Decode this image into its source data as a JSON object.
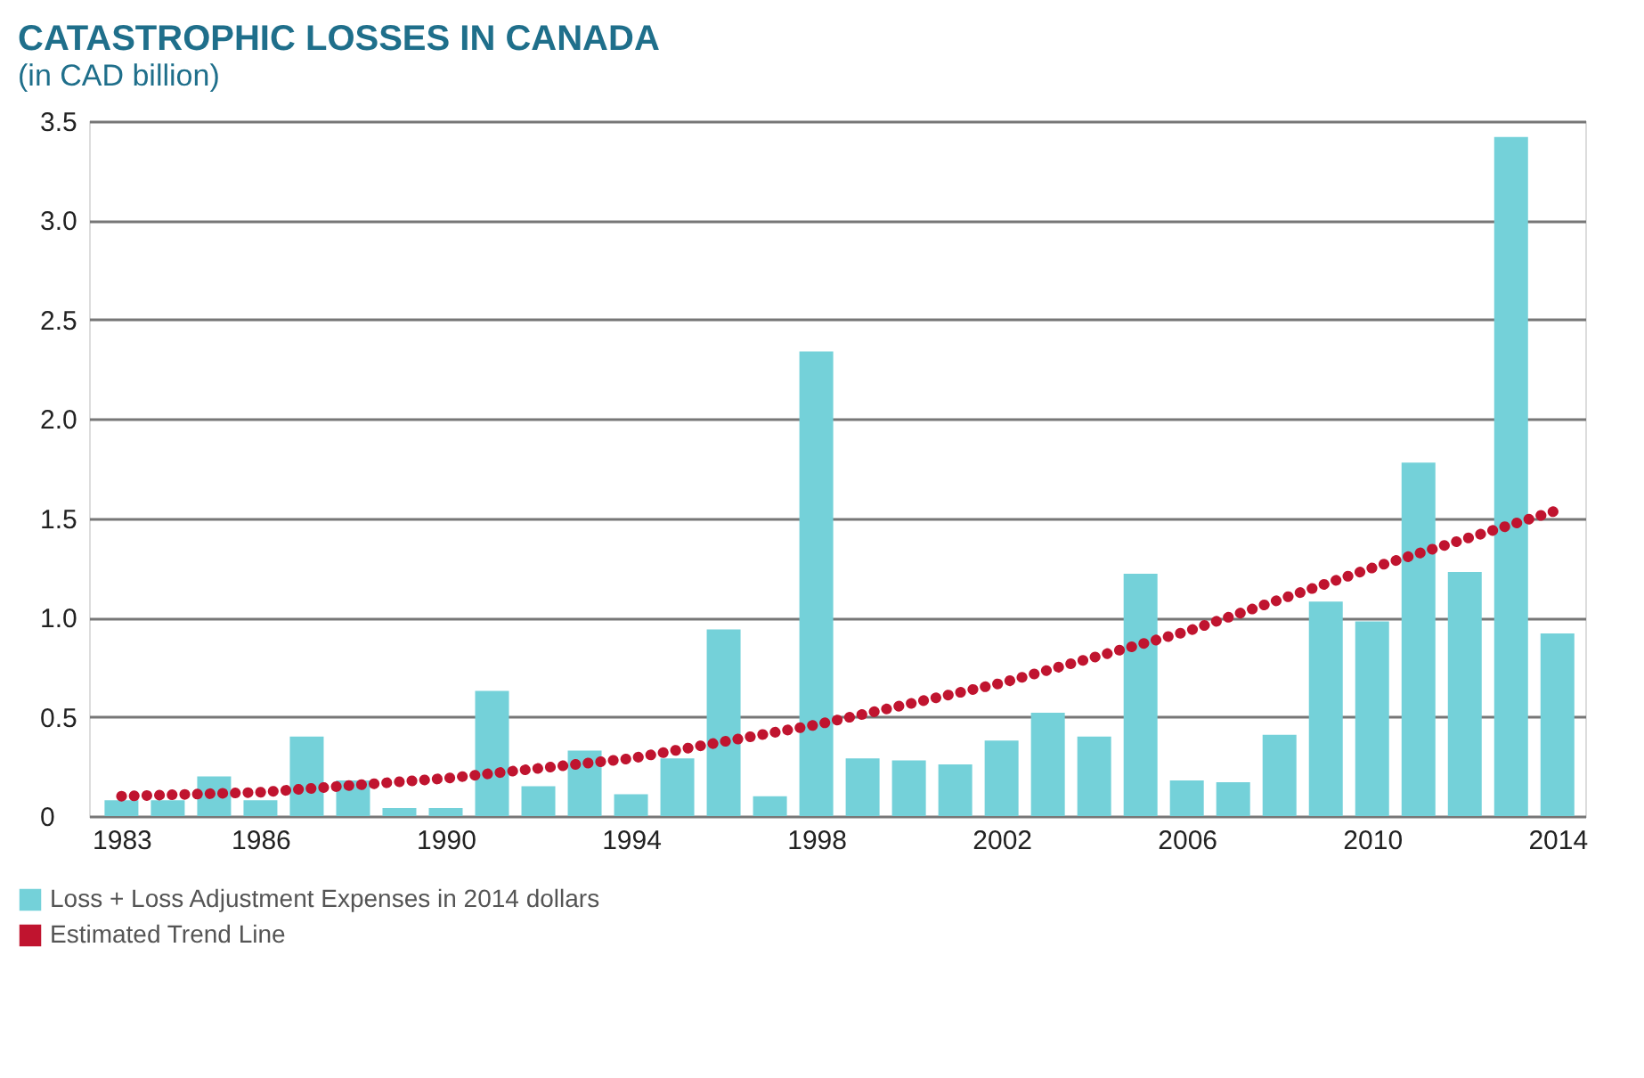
{
  "chart_data": {
    "type": "bar",
    "title": "CATASTROPHIC LOSSES IN CANADA",
    "subtitle": "(in CAD billion)",
    "x": [
      1983,
      1984,
      1985,
      1986,
      1987,
      1988,
      1989,
      1990,
      1991,
      1992,
      1993,
      1994,
      1995,
      1996,
      1997,
      1998,
      1999,
      2000,
      2001,
      2002,
      2003,
      2004,
      2005,
      2006,
      2007,
      2008,
      2009,
      2010,
      2011,
      2012,
      2013,
      2014
    ],
    "series": [
      {
        "name": "Loss + Loss Adjustment Expenses in 2014 dollars",
        "color": "#74d1d9",
        "values": [
          0.08,
          0.08,
          0.2,
          0.08,
          0.4,
          0.18,
          0.04,
          0.04,
          0.63,
          0.15,
          0.33,
          0.11,
          0.29,
          0.94,
          0.1,
          2.34,
          0.29,
          0.28,
          0.26,
          0.38,
          0.52,
          0.4,
          1.22,
          0.18,
          0.17,
          0.41,
          1.08,
          0.98,
          1.78,
          1.23,
          3.42,
          0.92
        ]
      },
      {
        "name": "Estimated Trend Line",
        "type": "line",
        "color": "#c0142f",
        "line_style": "dotted",
        "x": [
          1983,
          1986,
          1990,
          1994,
          1998,
          2002,
          2006,
          2010,
          2014
        ],
        "values": [
          0.1,
          0.12,
          0.19,
          0.29,
          0.46,
          0.67,
          0.93,
          1.25,
          1.54
        ]
      }
    ],
    "xlim": [
      1982.3,
      2014.6
    ],
    "xticks": [
      1983,
      1986,
      1990,
      1994,
      1998,
      2002,
      2006,
      2010,
      2014
    ],
    "ylim": [
      0,
      3.5
    ],
    "yticks": [
      {
        "value": 0,
        "label": "0"
      },
      {
        "value": 0.5,
        "label": "0.5"
      },
      {
        "value": 1,
        "label": "1.0"
      },
      {
        "value": 1.5,
        "label": "1.5"
      },
      {
        "value": 2,
        "label": "2.0"
      },
      {
        "value": 2.5,
        "label": "2.5"
      },
      {
        "value": 3,
        "label": "3.0"
      },
      {
        "value": 3.5,
        "label": "3.5"
      }
    ],
    "grid": "y",
    "legend": "bottom left"
  }
}
